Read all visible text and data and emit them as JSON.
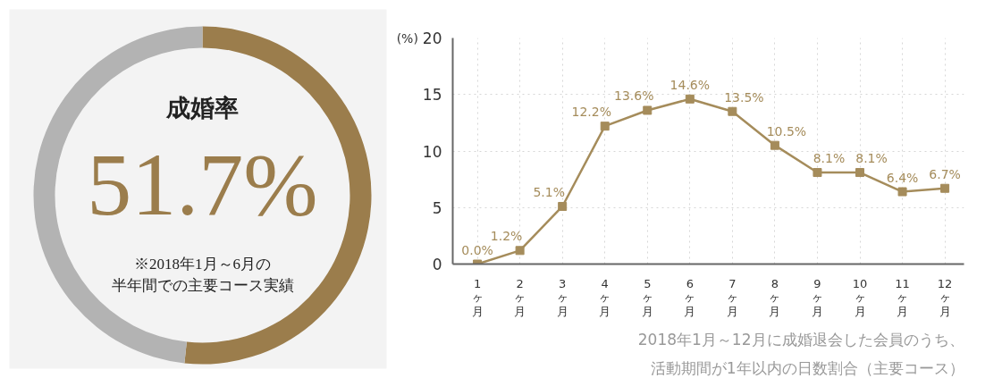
{
  "chart_data": [
    {
      "type": "donut",
      "title": "成婚率",
      "categories": [
        null,
        null
      ],
      "values": [
        51.7,
        48.3
      ],
      "colors": [
        "#9b7d4c",
        "#b3b3b3"
      ],
      "value_labels": [
        "51.7%",
        null
      ],
      "annotations": [
        "※2018年1月～6月の",
        "半年間での主要コース実績"
      ]
    },
    {
      "type": "line",
      "ylabel": "(%)",
      "categories": [
        "1ヶ月",
        "2ヶ月",
        "3ヶ月",
        "4ヶ月",
        "5ヶ月",
        "6ヶ月",
        "7ヶ月",
        "8ヶ月",
        "9ヶ月",
        "10ヶ月",
        "11ヶ月",
        "12ヶ月"
      ],
      "series": [
        {
          "color": "#a58c5b",
          "values": [
            0.0,
            1.2,
            5.1,
            12.2,
            13.6,
            14.6,
            13.5,
            10.5,
            8.1,
            8.1,
            6.4,
            6.7
          ],
          "value_labels": [
            "0.0%",
            "1.2%",
            "5.1%",
            "12.2%",
            "13.6%",
            "14.6%",
            "13.5%",
            "10.5%",
            "8.1%",
            "8.1%",
            "6.4%",
            "6.7%"
          ]
        }
      ],
      "ylim": [
        0,
        20
      ],
      "yticks": [
        0,
        5,
        10,
        15,
        20
      ],
      "grid": true,
      "marker": "square",
      "line_style": "solid",
      "annotations": [
        "2018年1月～12月に成婚退会した会員のうち、",
        "活動期間が1年以内の日数割合（主要コース）"
      ]
    }
  ]
}
